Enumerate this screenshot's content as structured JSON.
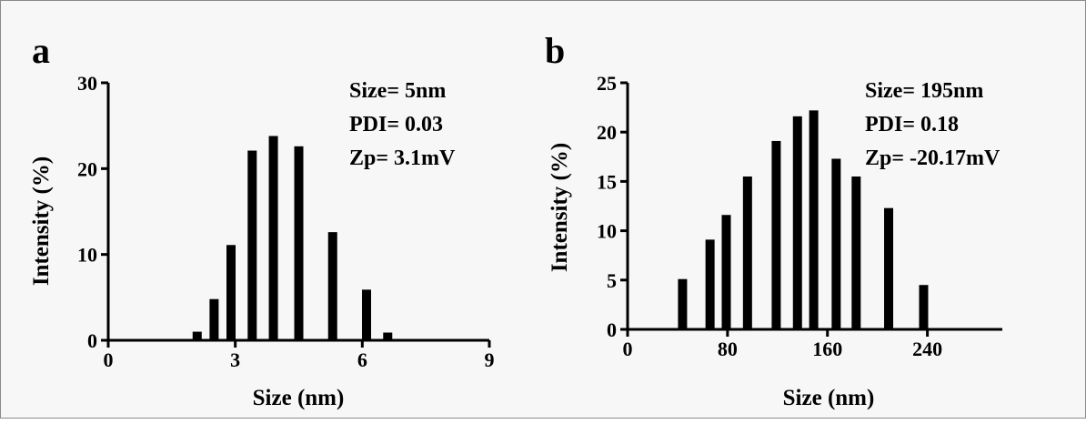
{
  "chart_data": [
    {
      "type": "bar",
      "panel_label": "a",
      "xlabel": "Size (nm)",
      "ylabel": "Intensity (%)",
      "xlim": [
        0,
        9
      ],
      "ylim": [
        0,
        30
      ],
      "xticks": [
        0,
        3,
        6,
        9
      ],
      "yticks": [
        0,
        10,
        20,
        30
      ],
      "grid": false,
      "annotations": [
        "Size= 5nm",
        "PDI= 0.03",
        "Zp= 3.1mV"
      ],
      "x": [
        2.1,
        2.5,
        2.9,
        3.4,
        3.9,
        4.5,
        5.3,
        6.1,
        6.6
      ],
      "values": [
        1.0,
        4.8,
        11.1,
        22.1,
        23.8,
        22.6,
        12.6,
        5.9,
        0.9
      ]
    },
    {
      "type": "bar",
      "panel_label": "b",
      "xlabel": "Size (nm)",
      "ylabel": "Intensity (%)",
      "xlim": [
        0,
        300
      ],
      "ylim": [
        0,
        25
      ],
      "xticks": [
        0,
        80,
        160,
        240
      ],
      "yticks": [
        0,
        5,
        10,
        15,
        20,
        25
      ],
      "grid": false,
      "annotations": [
        "Size= 195nm",
        "PDI= 0.18",
        "Zp= -20.17mV"
      ],
      "x": [
        44,
        66,
        79,
        96,
        119,
        136,
        149,
        167,
        183,
        209,
        237
      ],
      "values": [
        5.1,
        9.1,
        11.6,
        15.5,
        19.1,
        21.6,
        22.2,
        17.3,
        15.5,
        12.3,
        4.5
      ]
    }
  ]
}
